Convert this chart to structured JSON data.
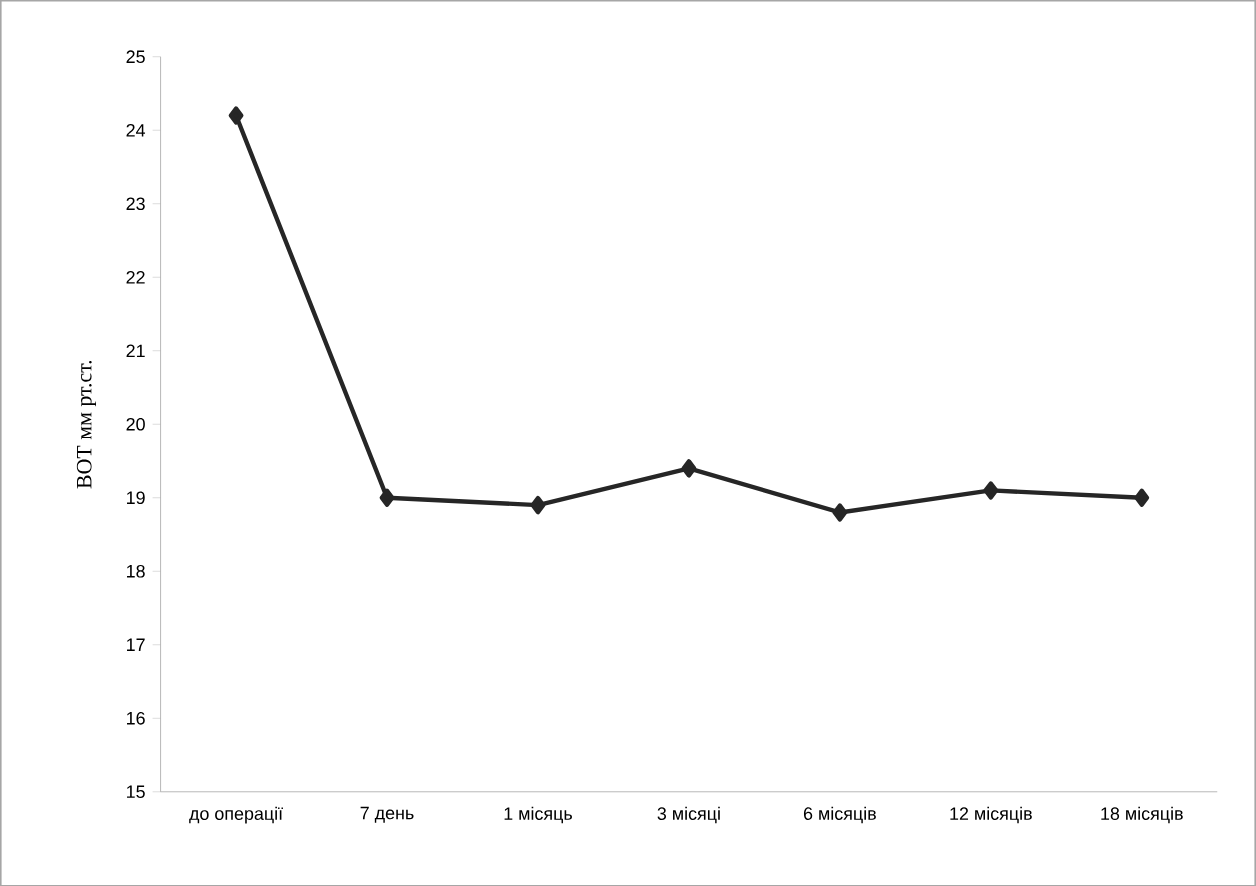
{
  "chart_data": {
    "type": "line",
    "ylabel": "ВОТ  мм рт.ст.",
    "categories": [
      "до операції",
      "7 день",
      "1 місяць",
      "3 місяці",
      "6 місяців",
      "12 місяців",
      "18 місяців"
    ],
    "series": [
      {
        "color": "#262626",
        "values": [
          24.2,
          19.0,
          18.9,
          19.4,
          18.8,
          19.1,
          19.0
        ]
      }
    ],
    "ylim": [
      15,
      25
    ],
    "yticks": [
      15,
      16,
      17,
      18,
      19,
      20,
      21,
      22,
      23,
      24,
      25
    ],
    "marker": "diamond",
    "line_style": "solid",
    "grid": false
  }
}
